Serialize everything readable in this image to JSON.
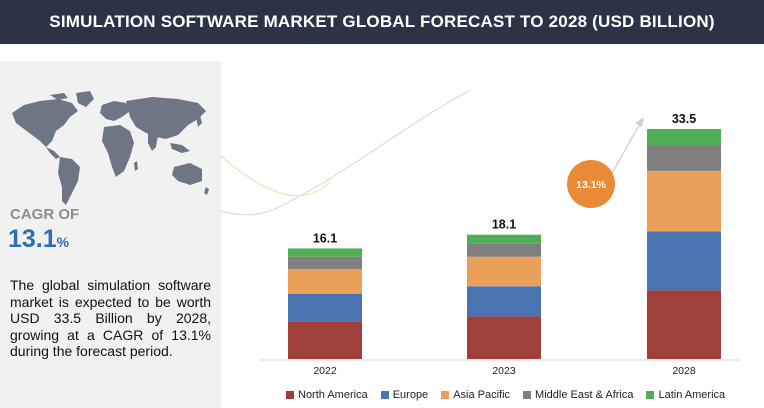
{
  "header": {
    "title": "SIMULATION SOFTWARE MARKET GLOBAL FORECAST TO 2028 (USD BILLION)"
  },
  "left_panel": {
    "cagr_label": "CAGR OF",
    "cagr_number": "13.1",
    "cagr_percent": "%",
    "summary": "The global simulation software market is expected to be worth USD  33.5 Billion by 2028, growing at a CAGR of 13.1% during the forecast period."
  },
  "colors": {
    "header_bg": "#2d3347",
    "north_america": "#a0403a",
    "europe": "#4a73b1",
    "asia_pacific": "#eba05a",
    "middle_east_africa": "#7f7f7f",
    "latin_america": "#4eaf55",
    "cagr_bubble": "#e98a36",
    "accent_blue": "#2e6fb0"
  },
  "chart_data": {
    "type": "bar",
    "stacked": true,
    "title": "Simulation Software Market Global Forecast to 2028 (USD Billion)",
    "categories": [
      "2022",
      "2023",
      "2028"
    ],
    "totals": [
      "16.1",
      "18.1",
      "33.5"
    ],
    "total_values": [
      16.1,
      18.1,
      33.5
    ],
    "series": [
      {
        "name": "North America",
        "color": "#a0403a",
        "values": [
          5.5,
          6.2,
          10.0
        ]
      },
      {
        "name": "Europe",
        "color": "#4a73b1",
        "values": [
          4.0,
          4.4,
          8.6
        ]
      },
      {
        "name": "Asia Pacific",
        "color": "#eba05a",
        "values": [
          3.6,
          4.3,
          8.8
        ]
      },
      {
        "name": "Middle East & Africa",
        "color": "#7f7f7f",
        "values": [
          1.8,
          1.9,
          3.7
        ]
      },
      {
        "name": "Latin America",
        "color": "#4eaf55",
        "values": [
          1.2,
          1.3,
          2.4
        ]
      }
    ],
    "cagr_annotation": "13.1%",
    "xlabel": "",
    "ylabel": "",
    "ylim": [
      0,
      33.5
    ],
    "grid": false,
    "legend_position": "bottom"
  }
}
